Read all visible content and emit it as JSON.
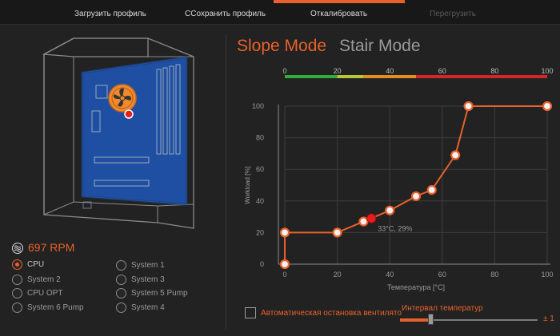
{
  "toolbar": {
    "load_profile": "Загрузить профиль",
    "save_profile": "ССохранить профиль",
    "calibrate": "Откалибровать",
    "reload": "Перегрузить"
  },
  "fan": {
    "rpm": "697 RPM",
    "icon": "fan-speed-icon",
    "sources": [
      {
        "label": "CPU",
        "selected": true
      },
      {
        "label": "System 2",
        "selected": false
      },
      {
        "label": "CPU OPT",
        "selected": false
      },
      {
        "label": "System 6 Pump",
        "selected": false
      },
      {
        "label": "System 1",
        "selected": false
      },
      {
        "label": "System 3",
        "selected": false
      },
      {
        "label": "System 5 Pump",
        "selected": false
      },
      {
        "label": "System 4",
        "selected": false
      }
    ]
  },
  "modes": {
    "slope": "Slope Mode",
    "stair": "Stair Mode",
    "active": "slope"
  },
  "chart_data": {
    "type": "line",
    "xlabel": "Температура [°C]",
    "ylabel": "Workload [%]",
    "xlim": [
      0,
      100
    ],
    "ylim": [
      0,
      100
    ],
    "xticks": [
      "0",
      "20",
      "40",
      "60",
      "80",
      "100"
    ],
    "yticks": [
      "0",
      "20",
      "40",
      "60",
      "80",
      "100"
    ],
    "top_scale_ticks": [
      "0",
      "20",
      "40",
      "60",
      "80",
      "100"
    ],
    "color_bands": [
      {
        "from": 0,
        "to": 20,
        "color": "#2fae3a"
      },
      {
        "from": 20,
        "to": 30,
        "color": "#b6c83a"
      },
      {
        "from": 30,
        "to": 50,
        "color": "#e09020"
      },
      {
        "from": 50,
        "to": 100,
        "color": "#d6262a"
      }
    ],
    "series": [
      {
        "x": [
          0,
          0,
          20,
          30,
          40,
          50,
          56,
          65,
          70,
          100
        ],
        "y": [
          0,
          20,
          20,
          27,
          34,
          43,
          47,
          69,
          100,
          100
        ]
      }
    ],
    "current": {
      "x": 33,
      "y": 29,
      "label": "33°C, 29%"
    },
    "grid": true,
    "line_color": "#e8612c"
  },
  "auto_stop": {
    "label": "Автоматическая остановка вентилятора",
    "checked": false
  },
  "interval": {
    "label": "Интервал температур",
    "value_label": "± 1",
    "level": 0.22
  }
}
